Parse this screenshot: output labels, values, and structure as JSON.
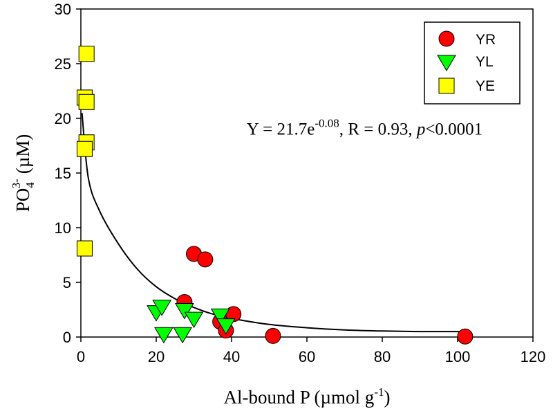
{
  "chart_data": {
    "type": "scatter",
    "xlabel": {
      "main": "Al-bound P (µmol g",
      "sup": "-1",
      "tail": ")"
    },
    "ylabel": {
      "main": "PO",
      "sub": "4",
      "sup": "3-",
      "tail": " (µM)"
    },
    "xlim": [
      0,
      120
    ],
    "ylim": [
      0,
      30
    ],
    "xticks": [
      0,
      20,
      40,
      60,
      80,
      100,
      120
    ],
    "yticks": [
      0,
      5,
      10,
      15,
      20,
      25,
      30
    ],
    "grid": false,
    "legend_position": "top-right",
    "series": [
      {
        "name": "YR",
        "marker": "circle",
        "color": "#ff0000",
        "points": [
          [
            27.5,
            3.2
          ],
          [
            30,
            7.6
          ],
          [
            33,
            7.1
          ],
          [
            37,
            1.4
          ],
          [
            38.5,
            0.6
          ],
          [
            40.5,
            2.1
          ],
          [
            51,
            0.1
          ],
          [
            102,
            0.05
          ]
        ]
      },
      {
        "name": "YL",
        "marker": "triangle-down",
        "color": "#00ff00",
        "points": [
          [
            20,
            2.3
          ],
          [
            21.5,
            2.8
          ],
          [
            22,
            0.3
          ],
          [
            27,
            0.3
          ],
          [
            27.5,
            2.5
          ],
          [
            30,
            1.7
          ],
          [
            37,
            2.0
          ],
          [
            38.5,
            1.1
          ]
        ]
      },
      {
        "name": "YE",
        "marker": "square",
        "color": "#ffff00",
        "points": [
          [
            1.5,
            25.9
          ],
          [
            1,
            21.9
          ],
          [
            1.5,
            21.5
          ],
          [
            1.5,
            17.8
          ],
          [
            1,
            17.2
          ],
          [
            1,
            8.1
          ]
        ]
      }
    ],
    "fit_curve": {
      "type": "exponential-decay",
      "points": [
        [
          0.3,
          20.5
        ],
        [
          2,
          14.5
        ],
        [
          5,
          11.5
        ],
        [
          10,
          8.5
        ],
        [
          15,
          6.2
        ],
        [
          20,
          4.6
        ],
        [
          25,
          3.5
        ],
        [
          30,
          2.7
        ],
        [
          35,
          2.1
        ],
        [
          40,
          1.7
        ],
        [
          50,
          1.15
        ],
        [
          60,
          0.85
        ],
        [
          70,
          0.65
        ],
        [
          80,
          0.55
        ],
        [
          90,
          0.5
        ],
        [
          102,
          0.5
        ]
      ]
    },
    "annotation": {
      "prefix": "Y = 21.7e",
      "exponent": "-0.08",
      "middle": ", R = 0.93, ",
      "italic": "p",
      "suffix": "<0.0001",
      "x": 44,
      "y": 18.5
    }
  }
}
